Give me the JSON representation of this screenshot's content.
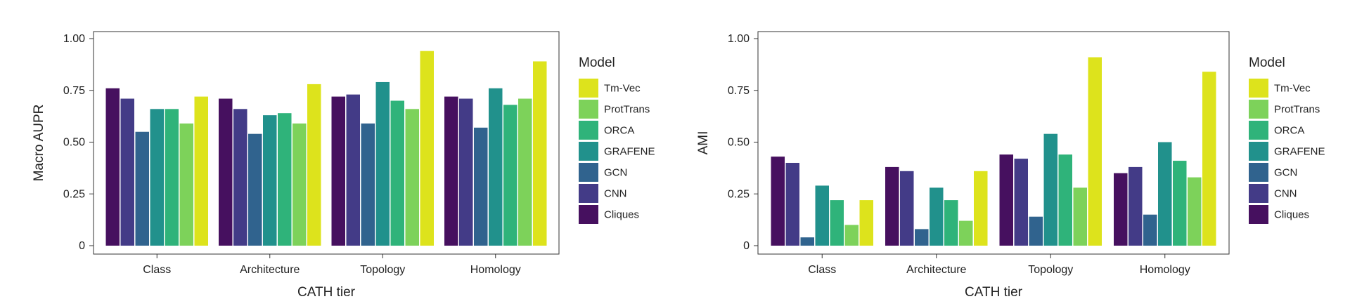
{
  "chart_data": [
    {
      "type": "bar",
      "xlabel": "CATH tier",
      "ylabel": "Macro AUPR",
      "ylim": [
        0,
        1.0
      ],
      "yticks": [
        0,
        0.25,
        0.5,
        0.75,
        1.0
      ],
      "ytick_labels": [
        "0",
        "0.25",
        "0.50",
        "0.75",
        "1.00"
      ],
      "categories": [
        "Class",
        "Architecture",
        "Topology",
        "Homology"
      ],
      "grid": false,
      "legend": {
        "title": "Model",
        "placement": "right",
        "order": [
          "Tm-Vec",
          "ProtTrans",
          "ORCA",
          "GRAFENE",
          "GCN",
          "CNN",
          "Cliques"
        ]
      },
      "series": [
        {
          "name": "Cliques",
          "values": [
            0.76,
            0.71,
            0.72,
            0.72
          ]
        },
        {
          "name": "CNN",
          "values": [
            0.71,
            0.66,
            0.73,
            0.71
          ]
        },
        {
          "name": "GCN",
          "values": [
            0.55,
            0.54,
            0.59,
            0.57
          ]
        },
        {
          "name": "GRAFENE",
          "values": [
            0.66,
            0.63,
            0.79,
            0.76
          ]
        },
        {
          "name": "ORCA",
          "values": [
            0.66,
            0.64,
            0.7,
            0.68
          ]
        },
        {
          "name": "ProtTrans",
          "values": [
            0.59,
            0.59,
            0.66,
            0.71
          ]
        },
        {
          "name": "Tm-Vec",
          "values": [
            0.72,
            0.78,
            0.94,
            0.89
          ]
        }
      ]
    },
    {
      "type": "bar",
      "xlabel": "CATH tier",
      "ylabel": "AMI",
      "ylim": [
        0,
        1.0
      ],
      "yticks": [
        0,
        0.25,
        0.5,
        0.75,
        1.0
      ],
      "ytick_labels": [
        "0",
        "0.25",
        "0.50",
        "0.75",
        "1.00"
      ],
      "categories": [
        "Class",
        "Architecture",
        "Topology",
        "Homology"
      ],
      "grid": false,
      "legend": {
        "title": "Model",
        "placement": "right",
        "order": [
          "Tm-Vec",
          "ProtTrans",
          "ORCA",
          "GRAFENE",
          "GCN",
          "CNN",
          "Cliques"
        ]
      },
      "series": [
        {
          "name": "Cliques",
          "values": [
            0.43,
            0.38,
            0.44,
            0.35
          ]
        },
        {
          "name": "CNN",
          "values": [
            0.4,
            0.36,
            0.42,
            0.38
          ]
        },
        {
          "name": "GCN",
          "values": [
            0.04,
            0.08,
            0.14,
            0.15
          ]
        },
        {
          "name": "GRAFENE",
          "values": [
            0.29,
            0.28,
            0.54,
            0.5
          ]
        },
        {
          "name": "ORCA",
          "values": [
            0.22,
            0.22,
            0.44,
            0.41
          ]
        },
        {
          "name": "ProtTrans",
          "values": [
            0.1,
            0.12,
            0.28,
            0.33
          ]
        },
        {
          "name": "Tm-Vec",
          "values": [
            0.22,
            0.36,
            0.91,
            0.84
          ]
        }
      ]
    }
  ],
  "colors": {
    "Cliques": "#46105f",
    "CNN": "#433b87",
    "GCN": "#30638e",
    "GRAFENE": "#21918c",
    "ORCA": "#2fb37a",
    "ProtTrans": "#7dd25a",
    "Tm-Vec": "#dde31c"
  }
}
